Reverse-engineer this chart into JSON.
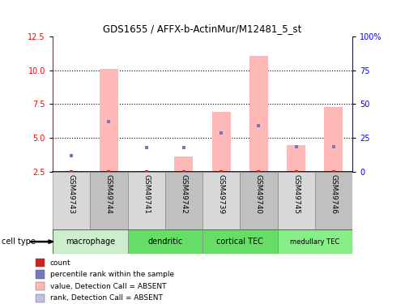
{
  "title": "GDS1655 / AFFX-b-ActinMur/M12481_5_st",
  "samples": [
    "GSM49743",
    "GSM49744",
    "GSM49741",
    "GSM49742",
    "GSM49739",
    "GSM49740",
    "GSM49745",
    "GSM49746"
  ],
  "cell_types": [
    {
      "label": "macrophage",
      "start": 0,
      "end": 2,
      "color": "#cceecc"
    },
    {
      "label": "dendritic",
      "start": 2,
      "end": 4,
      "color": "#66dd66"
    },
    {
      "label": "cortical TEC",
      "start": 4,
      "end": 6,
      "color": "#66dd66"
    },
    {
      "label": "medullary TEC",
      "start": 6,
      "end": 8,
      "color": "#88ee88"
    }
  ],
  "pink_bar_heights": [
    2.56,
    10.08,
    2.56,
    3.62,
    6.92,
    11.05,
    4.45,
    7.28
  ],
  "blue_square_y": [
    3.72,
    6.22,
    4.28,
    4.28,
    5.38,
    5.88,
    4.35,
    4.35
  ],
  "red_square_y": [
    2.52,
    2.52,
    2.52,
    2.52,
    2.52,
    2.52,
    2.52,
    2.52
  ],
  "ylim_left": [
    2.5,
    12.5
  ],
  "left_yticks": [
    2.5,
    5.0,
    7.5,
    10.0,
    12.5
  ],
  "right_yticks": [
    0,
    25,
    50,
    75,
    100
  ],
  "right_yticklabels": [
    "0",
    "25",
    "50",
    "75",
    "100%"
  ],
  "bar_color": "#ffb8b8",
  "blue_color": "#7777bb",
  "red_color": "#cc2222",
  "rank_absent_color": "#c0c0e0",
  "bar_width": 0.5,
  "legend_labels": [
    "count",
    "percentile rank within the sample",
    "value, Detection Call = ABSENT",
    "rank, Detection Call = ABSENT"
  ],
  "legend_colors": [
    "#cc2222",
    "#7777bb",
    "#ffb8b8",
    "#c0c0e0"
  ],
  "cell_type_label": "cell type",
  "col_bg_odd": "#d8d8d8",
  "col_bg_even": "#c0c0c0"
}
